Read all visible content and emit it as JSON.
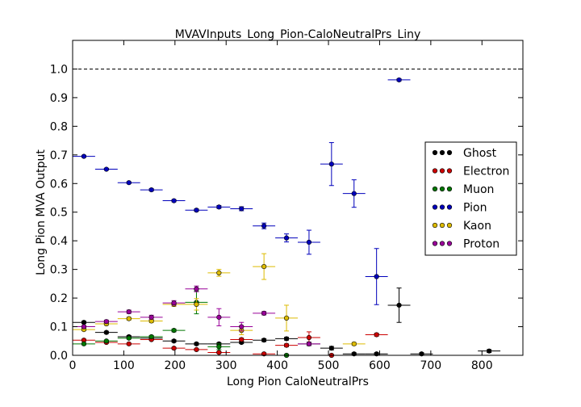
{
  "chart_data": {
    "type": "scatter",
    "title": "MVAVInputs_Long_Pion-CaloNeutralPrs_Liny",
    "xlabel": "Long Pion CaloNeutralPrs",
    "ylabel": "Long Pion MVA Output",
    "xlim": [
      0,
      880
    ],
    "ylim": [
      0,
      1.1
    ],
    "xticks": [
      0,
      100,
      200,
      300,
      400,
      500,
      600,
      700,
      800
    ],
    "yticks": [
      0.0,
      0.1,
      0.2,
      0.3,
      0.4,
      0.5,
      0.6,
      0.7,
      0.8,
      0.9,
      1.0
    ],
    "reference_line_y": 1.0,
    "legend_position": "right",
    "bin_half_width": 22,
    "series": [
      {
        "name": "Ghost",
        "color": "#000000",
        "points": [
          {
            "x": 22,
            "y": 0.115,
            "err": 0.004
          },
          {
            "x": 66,
            "y": 0.08,
            "err": 0.004
          },
          {
            "x": 110,
            "y": 0.065,
            "err": 0.004
          },
          {
            "x": 154,
            "y": 0.06,
            "err": 0.004
          },
          {
            "x": 198,
            "y": 0.05,
            "err": 0.004
          },
          {
            "x": 242,
            "y": 0.04,
            "err": 0.004
          },
          {
            "x": 286,
            "y": 0.04,
            "err": 0.004
          },
          {
            "x": 330,
            "y": 0.045,
            "err": 0.004
          },
          {
            "x": 374,
            "y": 0.053,
            "err": 0.005
          },
          {
            "x": 418,
            "y": 0.058,
            "err": 0.005
          },
          {
            "x": 462,
            "y": 0.04,
            "err": 0.006
          },
          {
            "x": 506,
            "y": 0.025,
            "err": 0.006
          },
          {
            "x": 550,
            "y": 0.005,
            "err": 0.004
          },
          {
            "x": 594,
            "y": 0.005,
            "err": 0.004
          },
          {
            "x": 638,
            "y": 0.175,
            "err": 0.06
          },
          {
            "x": 682,
            "y": 0.005,
            "err": 0.004
          },
          {
            "x": 814,
            "y": 0.015,
            "err": 0.005
          }
        ]
      },
      {
        "name": "Electron",
        "color": "#cc0000",
        "points": [
          {
            "x": 22,
            "y": 0.053,
            "err": 0.003
          },
          {
            "x": 66,
            "y": 0.045,
            "err": 0.003
          },
          {
            "x": 110,
            "y": 0.04,
            "err": 0.003
          },
          {
            "x": 154,
            "y": 0.055,
            "err": 0.003
          },
          {
            "x": 198,
            "y": 0.025,
            "err": 0.003
          },
          {
            "x": 242,
            "y": 0.02,
            "err": 0.003
          },
          {
            "x": 286,
            "y": 0.01,
            "err": 0.003
          },
          {
            "x": 330,
            "y": 0.055,
            "err": 0.005
          },
          {
            "x": 374,
            "y": 0.005,
            "err": 0.003
          },
          {
            "x": 418,
            "y": 0.035,
            "err": 0.005
          },
          {
            "x": 462,
            "y": 0.062,
            "err": 0.02
          },
          {
            "x": 506,
            "y": 0.0,
            "err": 0.003
          },
          {
            "x": 594,
            "y": 0.072,
            "err": 0.005
          }
        ]
      },
      {
        "name": "Muon",
        "color": "#007700",
        "points": [
          {
            "x": 22,
            "y": 0.04,
            "err": 0.003
          },
          {
            "x": 66,
            "y": 0.05,
            "err": 0.003
          },
          {
            "x": 110,
            "y": 0.06,
            "err": 0.003
          },
          {
            "x": 154,
            "y": 0.065,
            "err": 0.004
          },
          {
            "x": 198,
            "y": 0.087,
            "err": 0.005
          },
          {
            "x": 242,
            "y": 0.185,
            "err": 0.04
          },
          {
            "x": 286,
            "y": 0.03,
            "err": 0.01
          },
          {
            "x": 418,
            "y": 0.0,
            "err": 0.003
          }
        ]
      },
      {
        "name": "Pion",
        "color": "#0000bb",
        "points": [
          {
            "x": 22,
            "y": 0.695,
            "err": 0.003
          },
          {
            "x": 66,
            "y": 0.65,
            "err": 0.003
          },
          {
            "x": 110,
            "y": 0.603,
            "err": 0.003
          },
          {
            "x": 154,
            "y": 0.578,
            "err": 0.004
          },
          {
            "x": 198,
            "y": 0.54,
            "err": 0.004
          },
          {
            "x": 242,
            "y": 0.507,
            "err": 0.004
          },
          {
            "x": 286,
            "y": 0.518,
            "err": 0.005
          },
          {
            "x": 330,
            "y": 0.512,
            "err": 0.007
          },
          {
            "x": 374,
            "y": 0.452,
            "err": 0.01
          },
          {
            "x": 418,
            "y": 0.41,
            "err": 0.014
          },
          {
            "x": 462,
            "y": 0.395,
            "err": 0.042
          },
          {
            "x": 506,
            "y": 0.668,
            "err": 0.075
          },
          {
            "x": 550,
            "y": 0.565,
            "err": 0.048
          },
          {
            "x": 594,
            "y": 0.275,
            "err": 0.098
          },
          {
            "x": 638,
            "y": 0.962,
            "err": 0.004
          }
        ]
      },
      {
        "name": "Kaon",
        "color": "#ddbb00",
        "points": [
          {
            "x": 22,
            "y": 0.09,
            "err": 0.004
          },
          {
            "x": 66,
            "y": 0.11,
            "err": 0.005
          },
          {
            "x": 110,
            "y": 0.128,
            "err": 0.005
          },
          {
            "x": 154,
            "y": 0.12,
            "err": 0.006
          },
          {
            "x": 198,
            "y": 0.178,
            "err": 0.007
          },
          {
            "x": 242,
            "y": 0.178,
            "err": 0.02
          },
          {
            "x": 286,
            "y": 0.288,
            "err": 0.012
          },
          {
            "x": 330,
            "y": 0.087,
            "err": 0.015
          },
          {
            "x": 374,
            "y": 0.31,
            "err": 0.045
          },
          {
            "x": 418,
            "y": 0.13,
            "err": 0.045
          },
          {
            "x": 550,
            "y": 0.04,
            "err": 0.005
          }
        ]
      },
      {
        "name": "Proton",
        "color": "#990099",
        "points": [
          {
            "x": 22,
            "y": 0.1,
            "err": 0.004
          },
          {
            "x": 66,
            "y": 0.118,
            "err": 0.005
          },
          {
            "x": 110,
            "y": 0.152,
            "err": 0.006
          },
          {
            "x": 154,
            "y": 0.133,
            "err": 0.007
          },
          {
            "x": 198,
            "y": 0.183,
            "err": 0.008
          },
          {
            "x": 242,
            "y": 0.232,
            "err": 0.01
          },
          {
            "x": 286,
            "y": 0.133,
            "err": 0.03
          },
          {
            "x": 330,
            "y": 0.1,
            "err": 0.015
          },
          {
            "x": 374,
            "y": 0.147,
            "err": 0.006
          },
          {
            "x": 462,
            "y": 0.04,
            "err": 0.005
          }
        ]
      }
    ]
  }
}
